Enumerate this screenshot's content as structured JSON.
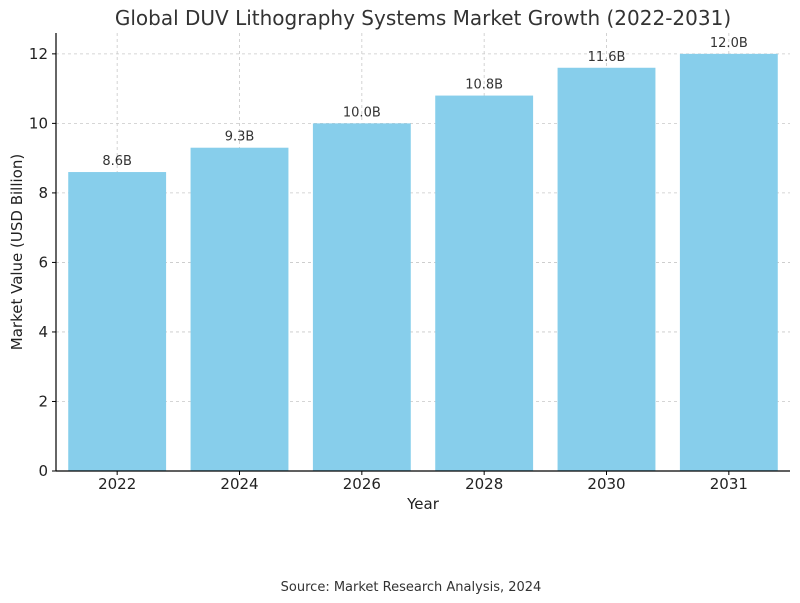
{
  "chart_data": {
    "type": "bar",
    "title": "Global DUV Lithography Systems Market Growth (2022-2031)",
    "xlabel": "Year",
    "ylabel": "Market Value (USD Billion)",
    "categories": [
      "2022",
      "2024",
      "2026",
      "2028",
      "2030",
      "2031"
    ],
    "values": [
      8.6,
      9.3,
      10.0,
      10.8,
      11.6,
      12.0
    ],
    "data_labels": [
      "8.6B",
      "9.3B",
      "10.0B",
      "10.8B",
      "11.6B",
      "12.0B"
    ],
    "ylim": [
      0,
      12.6
    ],
    "yticks": [
      0,
      2,
      4,
      6,
      8,
      10,
      12
    ],
    "grid": true,
    "bar_color": "#87CEEB"
  },
  "source": "Source: Market Research Analysis, 2024"
}
